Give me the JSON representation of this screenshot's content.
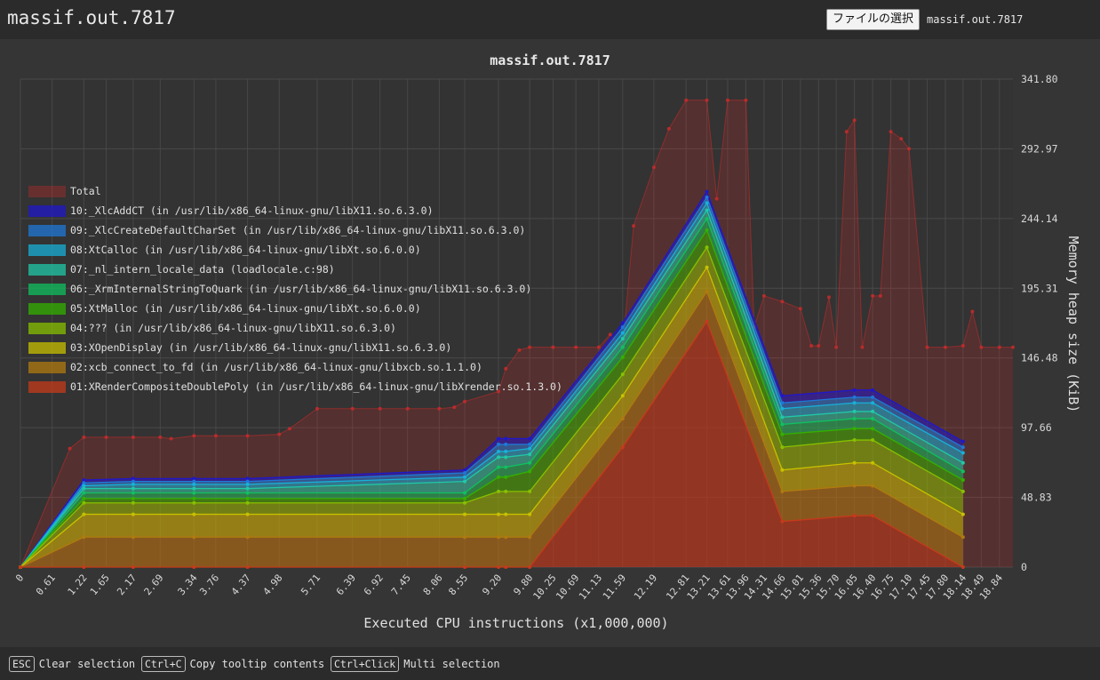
{
  "header": {
    "title": "massif.out.7817",
    "file_button_label": "ファイルの選択",
    "file_name": "massif.out.7817"
  },
  "footer": {
    "hints": [
      {
        "key": "ESC",
        "label": "Clear selection"
      },
      {
        "key": "Ctrl+C",
        "label": "Copy tooltip contents"
      },
      {
        "key": "Ctrl+Click",
        "label": "Multi selection"
      }
    ]
  },
  "colors": {
    "background": "#353535",
    "total": "#cc2a2a",
    "layers": [
      "#c53a1a",
      "#b07a10",
      "#c8c000",
      "#88c000",
      "#33b000",
      "#10c060",
      "#20c8a8",
      "#18b0d8",
      "#1e78d8",
      "#2018c8"
    ]
  },
  "chart_data": {
    "type": "area",
    "title": "massif.out.7817",
    "xlabel": "Executed CPU instructions (x1,000,000)",
    "ylabel": "Memory heap size (KiB)",
    "xlim": [
      0,
      19.1
    ],
    "ylim": [
      0,
      341.8
    ],
    "y_ticks": [
      "341.80",
      "292.97",
      "244.14",
      "195.31",
      "146.48",
      "97.66",
      "48.83",
      "0"
    ],
    "x_ticks": [
      "0",
      "0.61",
      "1.22",
      "1.65",
      "2.17",
      "2.69",
      "3.34",
      "3.76",
      "4.37",
      "4.98",
      "5.71",
      "6.39",
      "6.92",
      "7.45",
      "8.06",
      "8.55",
      "9.20",
      "9.80",
      "10.25",
      "10.69",
      "11.13",
      "11.59",
      "12.19",
      "12.81",
      "13.21",
      "13.61",
      "13.96",
      "14.31",
      "14.66",
      "15.01",
      "15.36",
      "15.70",
      "16.05",
      "16.40",
      "16.75",
      "17.10",
      "17.45",
      "17.80",
      "18.14",
      "18.49",
      "18.84"
    ],
    "total": {
      "name": "Total",
      "x": [
        0,
        0.95,
        1.22,
        1.65,
        2.17,
        2.69,
        2.9,
        3.34,
        3.76,
        4.37,
        4.98,
        5.18,
        5.71,
        6.39,
        6.92,
        7.45,
        8.06,
        8.35,
        8.55,
        9.2,
        9.34,
        9.6,
        9.8,
        10.25,
        10.69,
        11.13,
        11.35,
        11.59,
        11.8,
        12.19,
        12.48,
        12.81,
        13.21,
        13.4,
        13.61,
        13.96,
        14.12,
        14.31,
        14.66,
        15.01,
        15.22,
        15.36,
        15.56,
        15.7,
        15.9,
        16.05,
        16.2,
        16.4,
        16.55,
        16.75,
        16.95,
        17.1,
        17.45,
        17.8,
        18.14,
        18.32,
        18.49,
        18.84,
        19.1
      ],
      "values": [
        0,
        83,
        91,
        91,
        91,
        91,
        90,
        92,
        92,
        92,
        93,
        97,
        111,
        111,
        111,
        111,
        111,
        112,
        116,
        123,
        139,
        152,
        154,
        154,
        154,
        154,
        163,
        154,
        239,
        280,
        307,
        327,
        327,
        258,
        327,
        327,
        168,
        190,
        186,
        181,
        155,
        155,
        189,
        154,
        305,
        313,
        154,
        190,
        190,
        305,
        300,
        293,
        154,
        154,
        155,
        179,
        154,
        154,
        154
      ]
    },
    "layers_x": [
      0,
      1.22,
      2.17,
      3.34,
      4.37,
      8.55,
      9.2,
      9.34,
      9.8,
      11.59,
      13.21,
      14.66,
      16.05,
      16.4,
      18.14
    ],
    "layers": [
      {
        "name": "01:XRenderCompositeDoublePoly (in /usr/lib/x86_64-linux-gnu/libXrender.so.1.3.0)",
        "values": [
          0,
          0,
          0,
          0,
          0,
          0,
          0,
          0,
          0,
          84,
          172,
          32,
          36,
          36,
          0
        ]
      },
      {
        "name": "02:xcb_connect_to_fd (in /usr/lib/x86_64-linux-gnu/libxcb.so.1.1.0)",
        "values": [
          0,
          21,
          21,
          21,
          21,
          21,
          21,
          21,
          21,
          104,
          193,
          53,
          57,
          57,
          21
        ]
      },
      {
        "name": "03:XOpenDisplay (in /usr/lib/x86_64-linux-gnu/libX11.so.6.3.0)",
        "values": [
          0,
          37,
          37,
          37,
          37,
          37,
          37,
          37,
          37,
          120,
          210,
          68,
          73,
          73,
          37
        ]
      },
      {
        "name": "04:??? (in /usr/lib/x86_64-linux-gnu/libX11.so.6.3.0)",
        "values": [
          0,
          45,
          45,
          45,
          45,
          45,
          53,
          53,
          53,
          135,
          224,
          84,
          89,
          89,
          53
        ]
      },
      {
        "name": "05:XtMalloc (in /usr/lib/x86_64-linux-gnu/libXt.so.6.0.0)",
        "values": [
          0,
          48,
          48,
          48,
          48,
          48,
          63,
          63,
          67,
          147,
          236,
          93,
          97,
          97,
          61
        ]
      },
      {
        "name": "06:_XrmInternalStringToQuark (in /usr/lib/x86_64-linux-gnu/libX11.so.6.3.0)",
        "values": [
          0,
          52,
          52,
          52,
          52,
          52,
          70,
          70,
          73,
          154,
          244,
          100,
          104,
          104,
          67
        ]
      },
      {
        "name": "07:_nl_intern_locale_data (loadlocale.c:98)",
        "values": [
          0,
          55,
          55,
          55,
          55,
          60,
          77,
          77,
          79,
          160,
          250,
          105,
          109,
          109,
          73
        ]
      },
      {
        "name": "08:XtCalloc (in /usr/lib/x86_64-linux-gnu/libXt.so.6.0.0)",
        "values": [
          0,
          57,
          58,
          58,
          58,
          63,
          81,
          81,
          83,
          164,
          255,
          111,
          115,
          115,
          80
        ]
      },
      {
        "name": "09:_XlcCreateDefaultCharSet (in /usr/lib/x86_64-linux-gnu/libX11.so.6.3.0)",
        "values": [
          0,
          59,
          60,
          60,
          60,
          66,
          86,
          86,
          86,
          168,
          259,
          115,
          119,
          119,
          84
        ]
      },
      {
        "name": "10:_XlcAddCT (in /usr/lib/x86_64-linux-gnu/libX11.so.6.3.0)",
        "values": [
          0,
          61,
          62,
          62,
          62,
          68,
          90,
          90,
          90,
          171,
          263,
          120,
          124,
          124,
          88
        ]
      }
    ]
  }
}
